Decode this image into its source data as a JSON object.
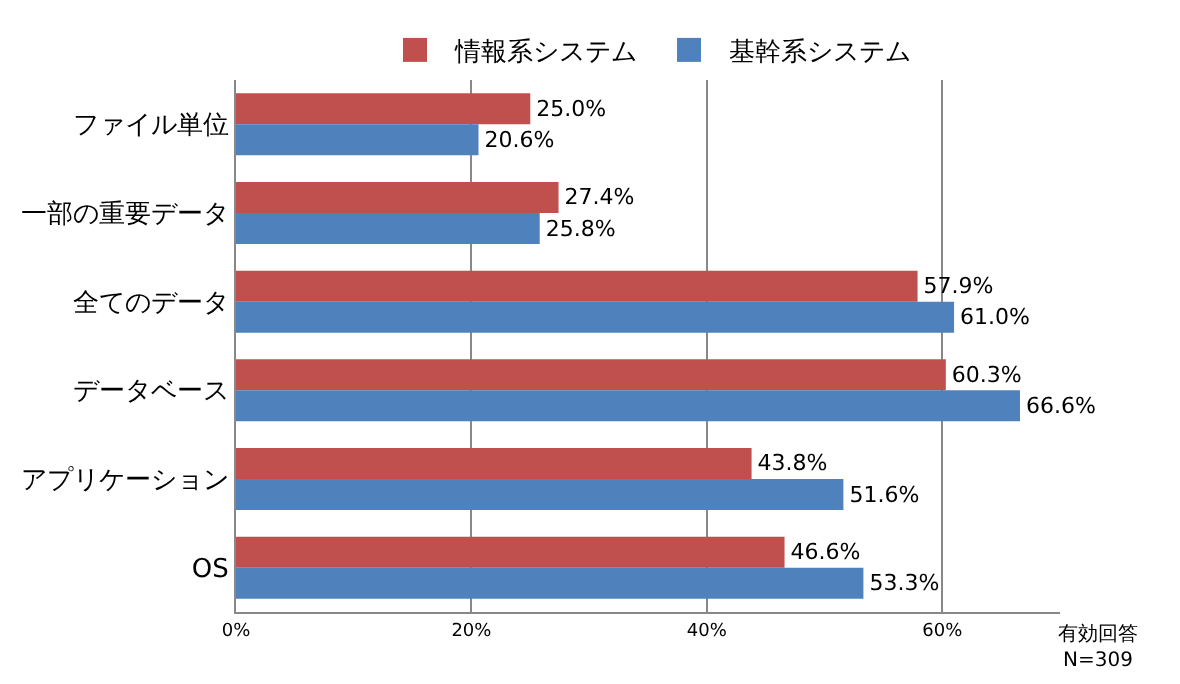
{
  "chart_data": {
    "type": "bar",
    "orientation": "horizontal",
    "categories": [
      "ファイル単位",
      "一部の重要データ",
      "全てのデータ",
      "データベース",
      "アプリケーション",
      "OS"
    ],
    "series": [
      {
        "name": "情報系システム",
        "color": "#c0504d",
        "values": [
          25.0,
          27.4,
          57.9,
          60.3,
          43.8,
          46.6
        ],
        "value_labels": [
          "25.0%",
          "27.4%",
          "57.9%",
          "60.3%",
          "43.8%",
          "46.6%"
        ]
      },
      {
        "name": "基幹系システム",
        "color": "#4f81bd",
        "values": [
          20.6,
          25.8,
          61.0,
          66.6,
          51.6,
          53.3
        ],
        "value_labels": [
          "20.6%",
          "25.8%",
          "61.0%",
          "66.6%",
          "51.6%",
          "53.3%"
        ]
      }
    ],
    "xlim": [
      0,
      70
    ],
    "xticks": [
      {
        "value": 0,
        "label": "0%"
      },
      {
        "value": 20,
        "label": "20%"
      },
      {
        "value": 40,
        "label": "40%"
      },
      {
        "value": 60,
        "label": "60%"
      }
    ],
    "grid": "x",
    "legend": "top",
    "annotations": [
      "有効回答\nN=309"
    ]
  }
}
